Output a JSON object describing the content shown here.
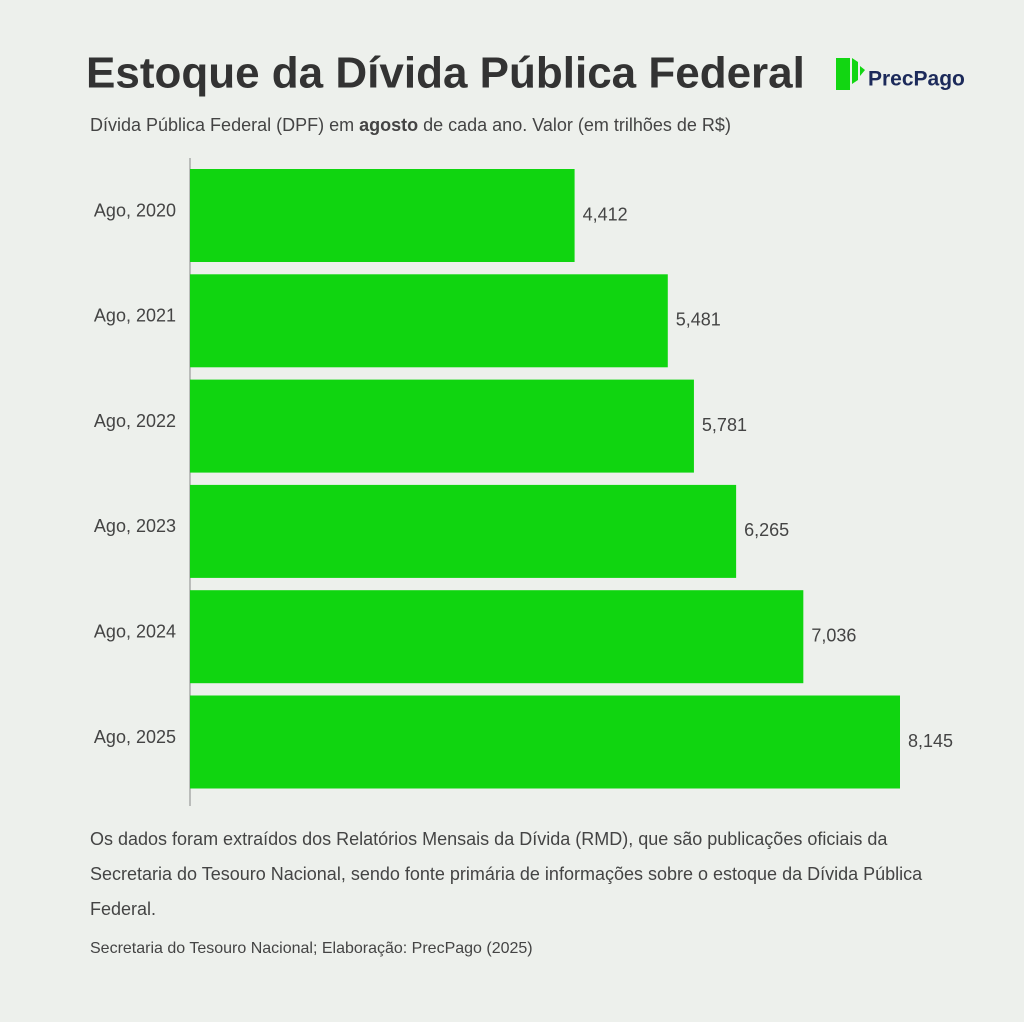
{
  "header": {
    "title": "Estoque da Dívida Pública Federal",
    "logo": "PrecPago",
    "subtitle_parts": [
      "Dívida Pública Federal (DPF) em ",
      "agosto",
      " de cada ano. Valor (em trilhões de R$)"
    ]
  },
  "chart_data": {
    "type": "bar",
    "orientation": "horizontal",
    "categories": [
      "Ago, 2020",
      "Ago, 2021",
      "Ago, 2022",
      "Ago, 2023",
      "Ago, 2024",
      "Ago, 2025"
    ],
    "values": [
      4.412,
      5.481,
      5.781,
      6.265,
      7.036,
      8.145
    ],
    "value_labels": [
      "4,412",
      "5,481",
      "5,781",
      "6,265",
      "7,036",
      "8,145"
    ],
    "color": "#10d510"
  },
  "footer": {
    "note": "Os dados foram extraídos dos Relatórios Mensais da Dívida (RMD), que são publicações oficiais da Secretaria do Tesouro Nacional, sendo fonte primária de informações sobre o estoque da Dívida Pública Federal.",
    "source": "Secretaria do Tesouro Nacional; Elaboração: PrecPago (2025)"
  }
}
